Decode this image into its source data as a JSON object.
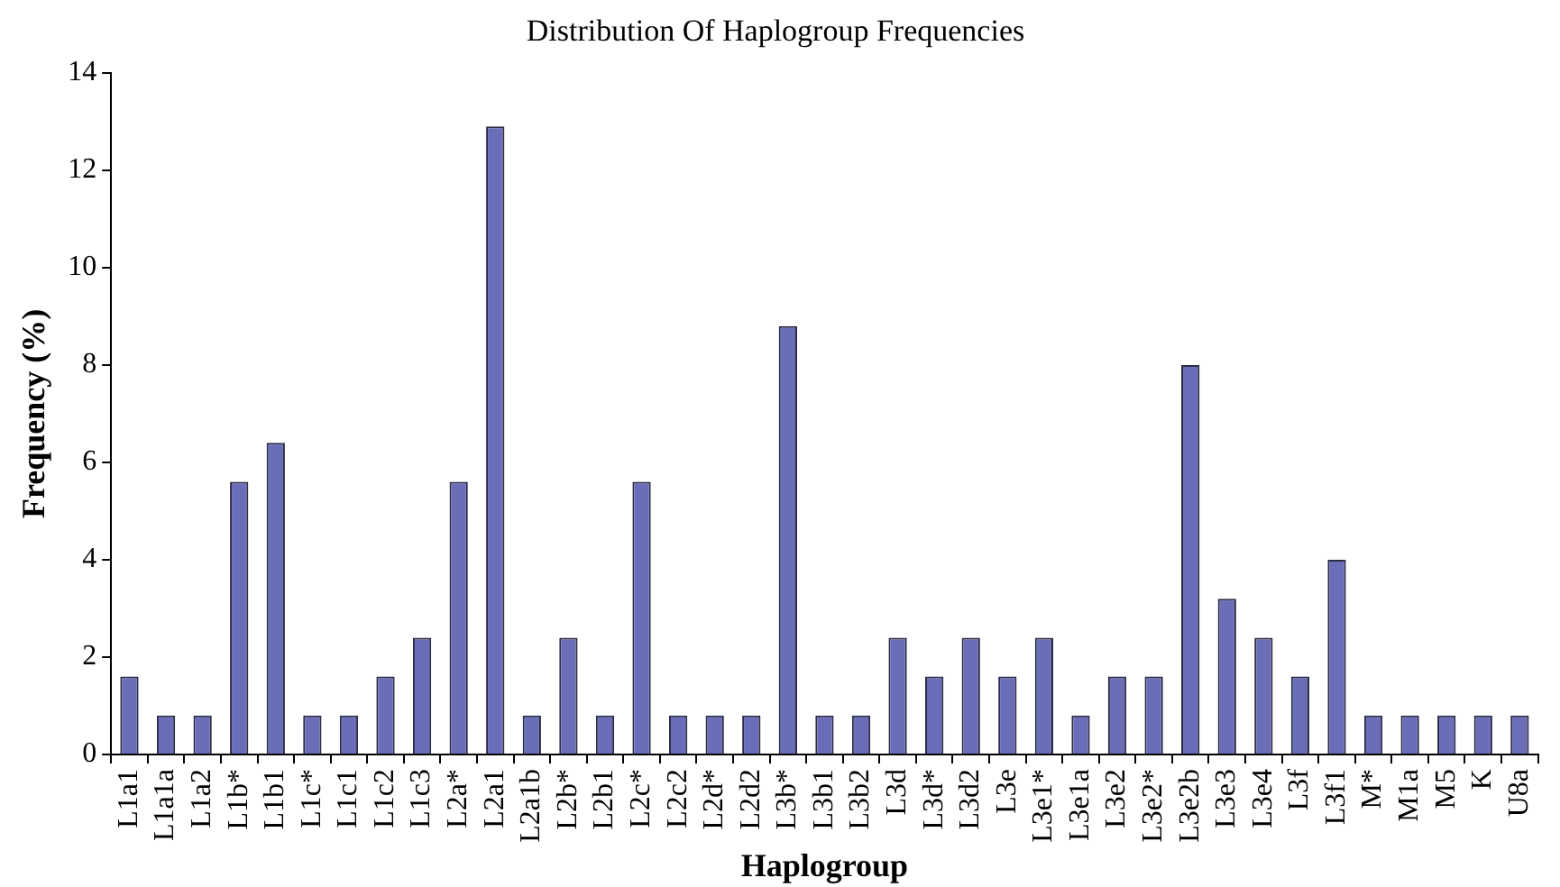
{
  "chart_data": {
    "type": "bar",
    "title": "Distribution Of Haplogroup Frequencies",
    "xlabel": "Haplogroup",
    "ylabel": "Frequency (%)",
    "categories": [
      "L1a1",
      "L1a1a",
      "L1a2",
      "L1b*",
      "L1b1",
      "L1c*",
      "L1c1",
      "L1c2",
      "L1c3",
      "L2a*",
      "L2a1",
      "L2a1b",
      "L2b*",
      "L2b1",
      "L2c*",
      "L2c2",
      "L2d*",
      "L2d2",
      "L3b*",
      "L3b1",
      "L3b2",
      "L3d",
      "L3d*",
      "L3d2",
      "L3e",
      "L3e1*",
      "L3e1a",
      "L3e2",
      "L3e2*",
      "L3e2b",
      "L3e3",
      "L3e4",
      "L3f",
      "L3f1",
      "M*",
      "M1a",
      "M5",
      "K",
      "U8a"
    ],
    "values": [
      1.6,
      0.8,
      0.8,
      5.6,
      6.4,
      0.8,
      0.8,
      1.6,
      2.4,
      5.6,
      12.9,
      0.8,
      2.4,
      0.8,
      5.6,
      0.8,
      0.8,
      0.8,
      8.8,
      0.8,
      0.8,
      2.4,
      1.6,
      2.4,
      1.6,
      2.4,
      0.8,
      1.6,
      1.6,
      8.0,
      3.2,
      2.4,
      1.6,
      4.0,
      0.8,
      0.8,
      0.8,
      0.8,
      0.8
    ],
    "color": "#6a6eb8",
    "ylim": [
      0,
      14
    ],
    "yticks": [
      0,
      2,
      4,
      6,
      8,
      10,
      12,
      14
    ],
    "grid": false,
    "legend": false
  }
}
